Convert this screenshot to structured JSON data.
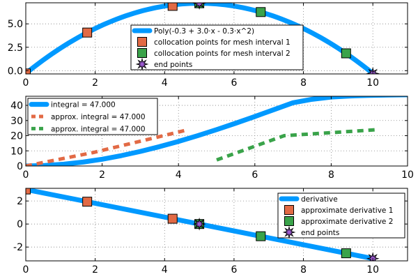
{
  "colors": {
    "curve": "#0099ff",
    "interval1": "#e26a45",
    "interval2": "#3aa34a",
    "endpoint": "#9b59d0",
    "grid": "#808080"
  },
  "chart_data": [
    {
      "type": "line",
      "id": "poly",
      "xlim": [
        0,
        11
      ],
      "ylim": [
        -0.35,
        7.25
      ],
      "x_ticks": [
        0,
        2,
        4,
        6,
        8,
        10
      ],
      "y_ticks": [
        0.0,
        2.5,
        5.0
      ],
      "y_tick_labels": [
        "0.0",
        "2.5",
        "5.0"
      ],
      "grid": true,
      "legend_position": "top-right",
      "series": [
        {
          "name": "Poly(-0.3 + 3.0⋅x - 0.3⋅x^2)",
          "kind": "line",
          "color_key": "curve",
          "coef": [
            -0.3,
            3.0,
            -0.3
          ],
          "x_range": [
            0,
            10
          ]
        },
        {
          "name": "collocation points for mesh interval 1",
          "kind": "square",
          "color_key": "interval1",
          "x": [
            0.0,
            1.77,
            4.23
          ],
          "y": [
            -0.3,
            4.07,
            6.92
          ]
        },
        {
          "name": "collocation points for mesh interval 2",
          "kind": "square",
          "color_key": "interval2",
          "x": [
            5.0,
            6.77,
            9.23
          ],
          "y": [
            7.2,
            6.26,
            1.85
          ]
        },
        {
          "name": "end points",
          "kind": "star",
          "color_key": "endpoint",
          "x": [
            5.0,
            10.0
          ],
          "y": [
            7.2,
            -0.3
          ]
        }
      ]
    },
    {
      "type": "line",
      "id": "integral",
      "xlim": [
        0,
        10
      ],
      "ylim": [
        0,
        46
      ],
      "x_ticks": [
        0,
        2,
        4,
        6,
        8,
        10
      ],
      "y_ticks": [
        0,
        10,
        20,
        30,
        40
      ],
      "grid": true,
      "legend_position": "top-left",
      "series": [
        {
          "name": "integral = 47.000",
          "kind": "line",
          "color_key": "curve",
          "x": [
            0,
            0.5,
            1,
            1.5,
            2,
            2.5,
            3,
            3.5,
            4,
            4.5,
            5,
            5.5,
            6,
            6.5,
            7,
            7.5,
            8,
            8.5,
            9,
            9.5,
            10
          ],
          "y": [
            0,
            0.34,
            1.2,
            2.59,
            4.47,
            6.84,
            9.6,
            12.74,
            16.21,
            19.99,
            24.0,
            28.23,
            32.64,
            37.18,
            41.71,
            44.0,
            45.5,
            46.2,
            46.6,
            46.8,
            47.0
          ]
        },
        {
          "name": "approx. integral = 47.000",
          "kind": "dashed",
          "color_key": "interval1",
          "x": [
            0.0,
            1.77,
            4.23
          ],
          "y": [
            0.0,
            8.9,
            23.8
          ]
        },
        {
          "name": "approx. integral = 47.000",
          "kind": "dashed",
          "color_key": "interval2",
          "x": [
            5.0,
            6.77,
            9.23
          ],
          "y": [
            4.0,
            20.0,
            24.0
          ]
        }
      ]
    },
    {
      "type": "line",
      "id": "derivative",
      "xlim": [
        0,
        11
      ],
      "ylim": [
        -3.2,
        3.1
      ],
      "x_ticks": [
        0,
        2,
        4,
        6,
        8,
        10
      ],
      "y_ticks": [
        -2,
        0,
        2
      ],
      "grid": true,
      "legend_position": "top-right",
      "series": [
        {
          "name": "derivative",
          "kind": "line",
          "color_key": "curve",
          "x": [
            0,
            10
          ],
          "y": [
            3.0,
            -3.0
          ]
        },
        {
          "name": "approximate derivative 1",
          "kind": "square",
          "color_key": "interval1",
          "x": [
            0.0,
            1.77,
            4.23
          ],
          "y": [
            3.0,
            1.94,
            0.46
          ]
        },
        {
          "name": "approximate derivative 2",
          "kind": "square",
          "color_key": "interval2",
          "x": [
            5.0,
            6.77,
            9.23
          ],
          "y": [
            0.0,
            -1.06,
            -2.54
          ]
        },
        {
          "name": "end points",
          "kind": "star",
          "color_key": "endpoint",
          "x": [
            5.0,
            10.0
          ],
          "y": [
            0.0,
            -3.0
          ]
        }
      ]
    }
  ]
}
